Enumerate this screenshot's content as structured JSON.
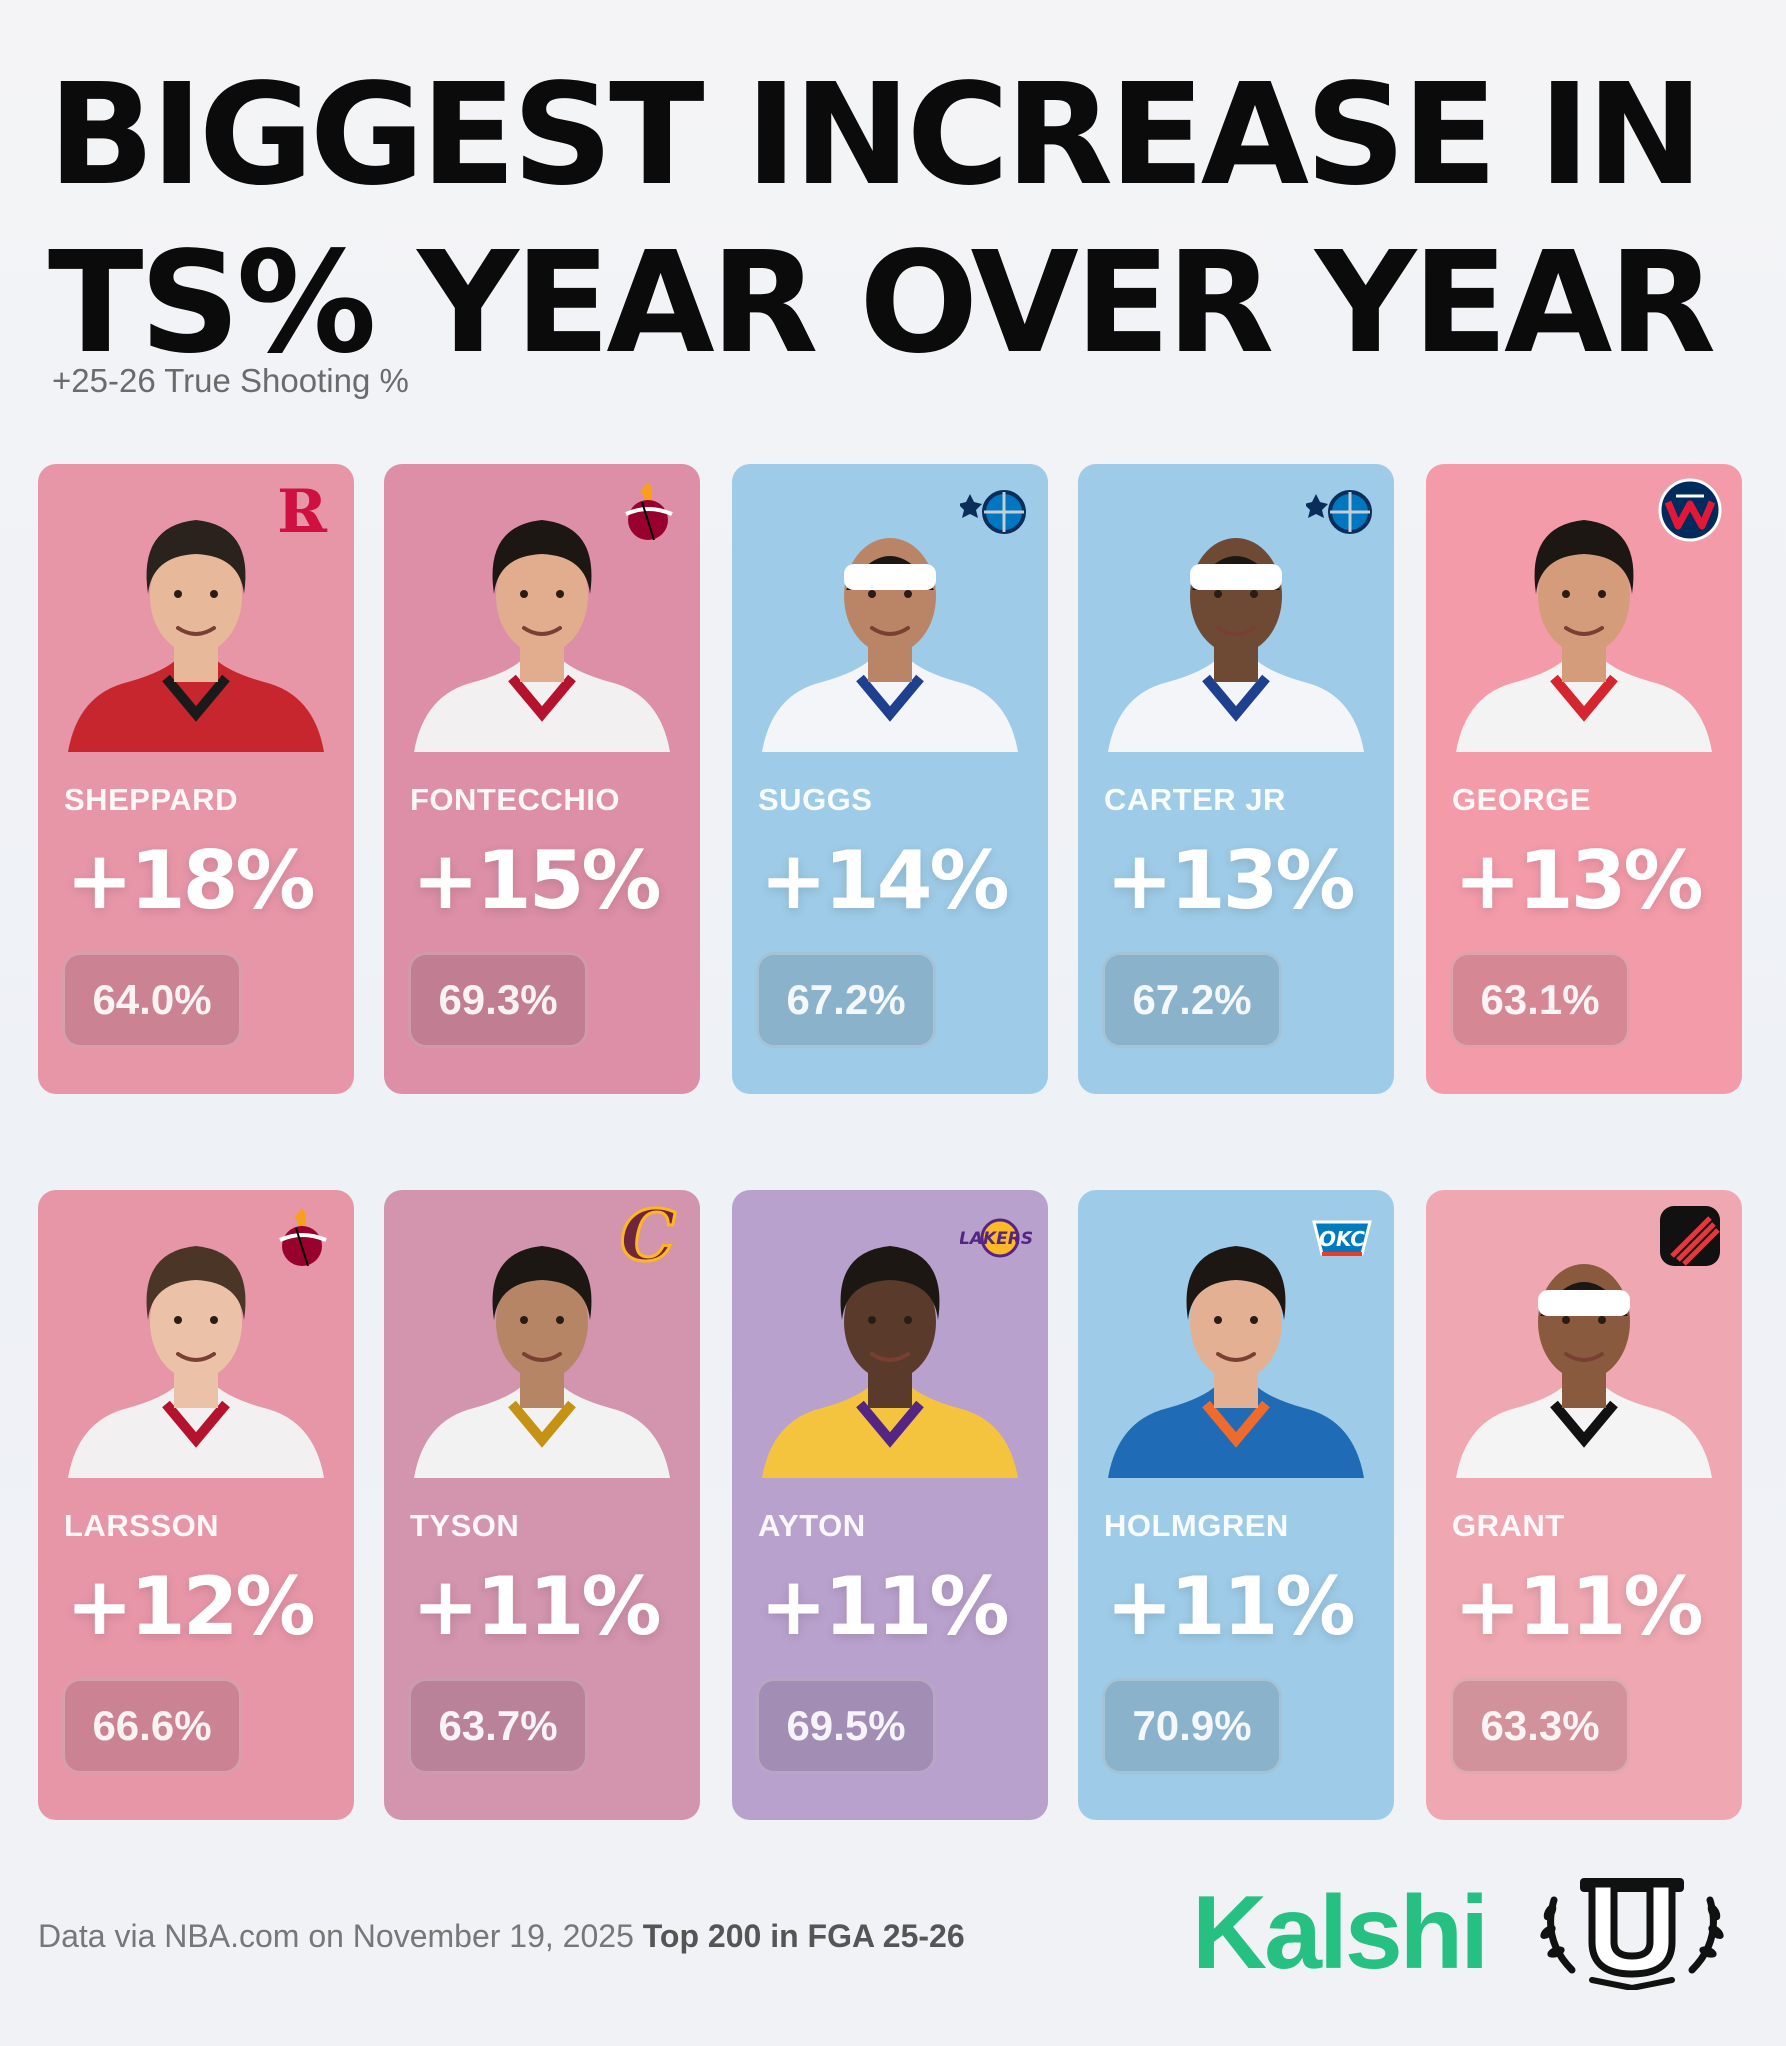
{
  "title": {
    "line1": "BIGGEST INCREASE IN",
    "line2": "TS% YEAR OVER YEAR"
  },
  "subtitle": "+25-26 True Shooting %",
  "players": [
    {
      "name": "SHEPPARD",
      "increase": "+18%",
      "ts": "64.0%",
      "team_icon": "rockets-logo-icon",
      "bg": "#e796a8",
      "jersey": "#c8262e",
      "trim": "#1a1a1a",
      "skin": "#e7b99a",
      "hair": "#2a221d"
    },
    {
      "name": "FONTECCHIO",
      "increase": "+15%",
      "ts": "69.3%",
      "team_icon": "heat-logo-icon",
      "bg": "#dc8fa6",
      "jersey": "#f2f0f1",
      "trim": "#b5122d",
      "skin": "#e2ad8e",
      "hair": "#1d1714"
    },
    {
      "name": "SUGGS",
      "increase": "+14%",
      "ts": "67.2%",
      "team_icon": "magic-logo-icon",
      "bg": "#9ecbe7",
      "jersey": "#f4f5f8",
      "trim": "#1f3f8f",
      "skin": "#b98566",
      "hair": "#ffffff"
    },
    {
      "name": "CARTER JR",
      "increase": "+13%",
      "ts": "67.2%",
      "team_icon": "magic-logo-icon",
      "bg": "#9ecbe7",
      "jersey": "#f4f5f8",
      "trim": "#1f3f8f",
      "skin": "#6e4a34",
      "hair": "#ffffff"
    },
    {
      "name": "GEORGE",
      "increase": "+13%",
      "ts": "63.1%",
      "team_icon": "wizards-logo-icon",
      "bg": "#f39ba9",
      "jersey": "#f3f3f4",
      "trim": "#d5262f",
      "skin": "#d59c7b",
      "hair": "#1d1714"
    },
    {
      "name": "LARSSON",
      "increase": "+12%",
      "ts": "66.6%",
      "team_icon": "heat-logo-icon",
      "bg": "#e796a8",
      "jersey": "#f2f0f1",
      "trim": "#b5122d",
      "skin": "#ebc2a8",
      "hair": "#4a3527"
    },
    {
      "name": "TYSON",
      "increase": "+11%",
      "ts": "63.7%",
      "team_icon": "cavaliers-logo-icon",
      "bg": "#d394ad",
      "jersey": "#f2f2f2",
      "trim": "#c69214",
      "skin": "#b58566",
      "hair": "#1d1714"
    },
    {
      "name": "AYTON",
      "increase": "+11%",
      "ts": "69.5%",
      "team_icon": "lakers-logo-icon",
      "bg": "#b9a1cd",
      "jersey": "#f4c43e",
      "trim": "#552583",
      "skin": "#5a3b2b",
      "hair": "#1d1714"
    },
    {
      "name": "HOLMGREN",
      "increase": "+11%",
      "ts": "70.9%",
      "team_icon": "thunder-logo-icon",
      "bg": "#9ecbe7",
      "jersey": "#1f6bb6",
      "trim": "#ef6b2c",
      "skin": "#e3b094",
      "hair": "#1d1714"
    },
    {
      "name": "GRANT",
      "increase": "+11%",
      "ts": "63.3%",
      "team_icon": "blazers-logo-icon",
      "bg": "#efa7b1",
      "jersey": "#f4f4f4",
      "trim": "#111111",
      "skin": "#8a5a3e",
      "hair": "#ffffff"
    }
  ],
  "footer": {
    "source": "Data via NBA.com on November 19, 2025",
    "qualifier": "Top 200 in FGA 25-26",
    "brand": "Kalshi",
    "crest_icon": "laurel-u-crest-icon"
  }
}
